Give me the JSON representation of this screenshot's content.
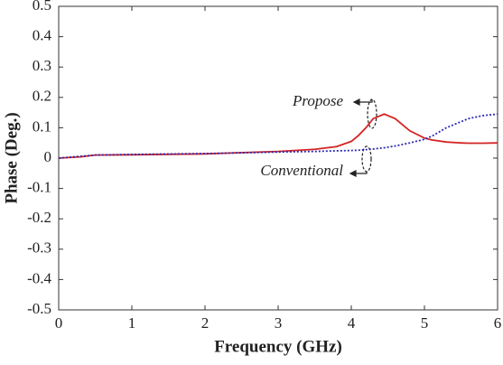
{
  "chart_data": {
    "type": "line",
    "xlabel": "Frequency (GHz)",
    "ylabel": "Phase (Deg.)",
    "annotations": [
      "Propose",
      "Conventional"
    ],
    "x": [
      0,
      0.3,
      0.5,
      1,
      2,
      3,
      3.5,
      3.8,
      4.0,
      4.1,
      4.2,
      4.3,
      4.45,
      4.6,
      4.7,
      4.8,
      5.0,
      5.1,
      5.3,
      5.5,
      5.6,
      5.8,
      6
    ],
    "series": [
      {
        "name": "Propose",
        "color": "#d42424",
        "dash": false,
        "values": [
          0,
          0.004,
          0.01,
          0.011,
          0.014,
          0.022,
          0.029,
          0.038,
          0.055,
          0.075,
          0.1,
          0.13,
          0.145,
          0.13,
          0.11,
          0.09,
          0.066,
          0.06,
          0.053,
          0.05,
          0.049,
          0.049,
          0.05
        ]
      },
      {
        "name": "Conventional",
        "color": "#2a2ab4",
        "dash": true,
        "values": [
          0,
          0.006,
          0.01,
          0.012,
          0.015,
          0.02,
          0.022,
          0.024,
          0.025,
          0.026,
          0.028,
          0.03,
          0.034,
          0.04,
          0.045,
          0.05,
          0.062,
          0.072,
          0.1,
          0.12,
          0.13,
          0.14,
          0.145
        ]
      }
    ],
    "xlim": [
      0,
      6
    ],
    "xticks": [
      0,
      1,
      2,
      3,
      4,
      5,
      6
    ],
    "ylim": [
      -0.5,
      0.5
    ],
    "yticks": [
      0.5,
      0.4,
      0.3,
      0.2,
      0.1,
      0,
      -0.1,
      -0.2,
      -0.3,
      -0.4,
      -0.5
    ]
  }
}
